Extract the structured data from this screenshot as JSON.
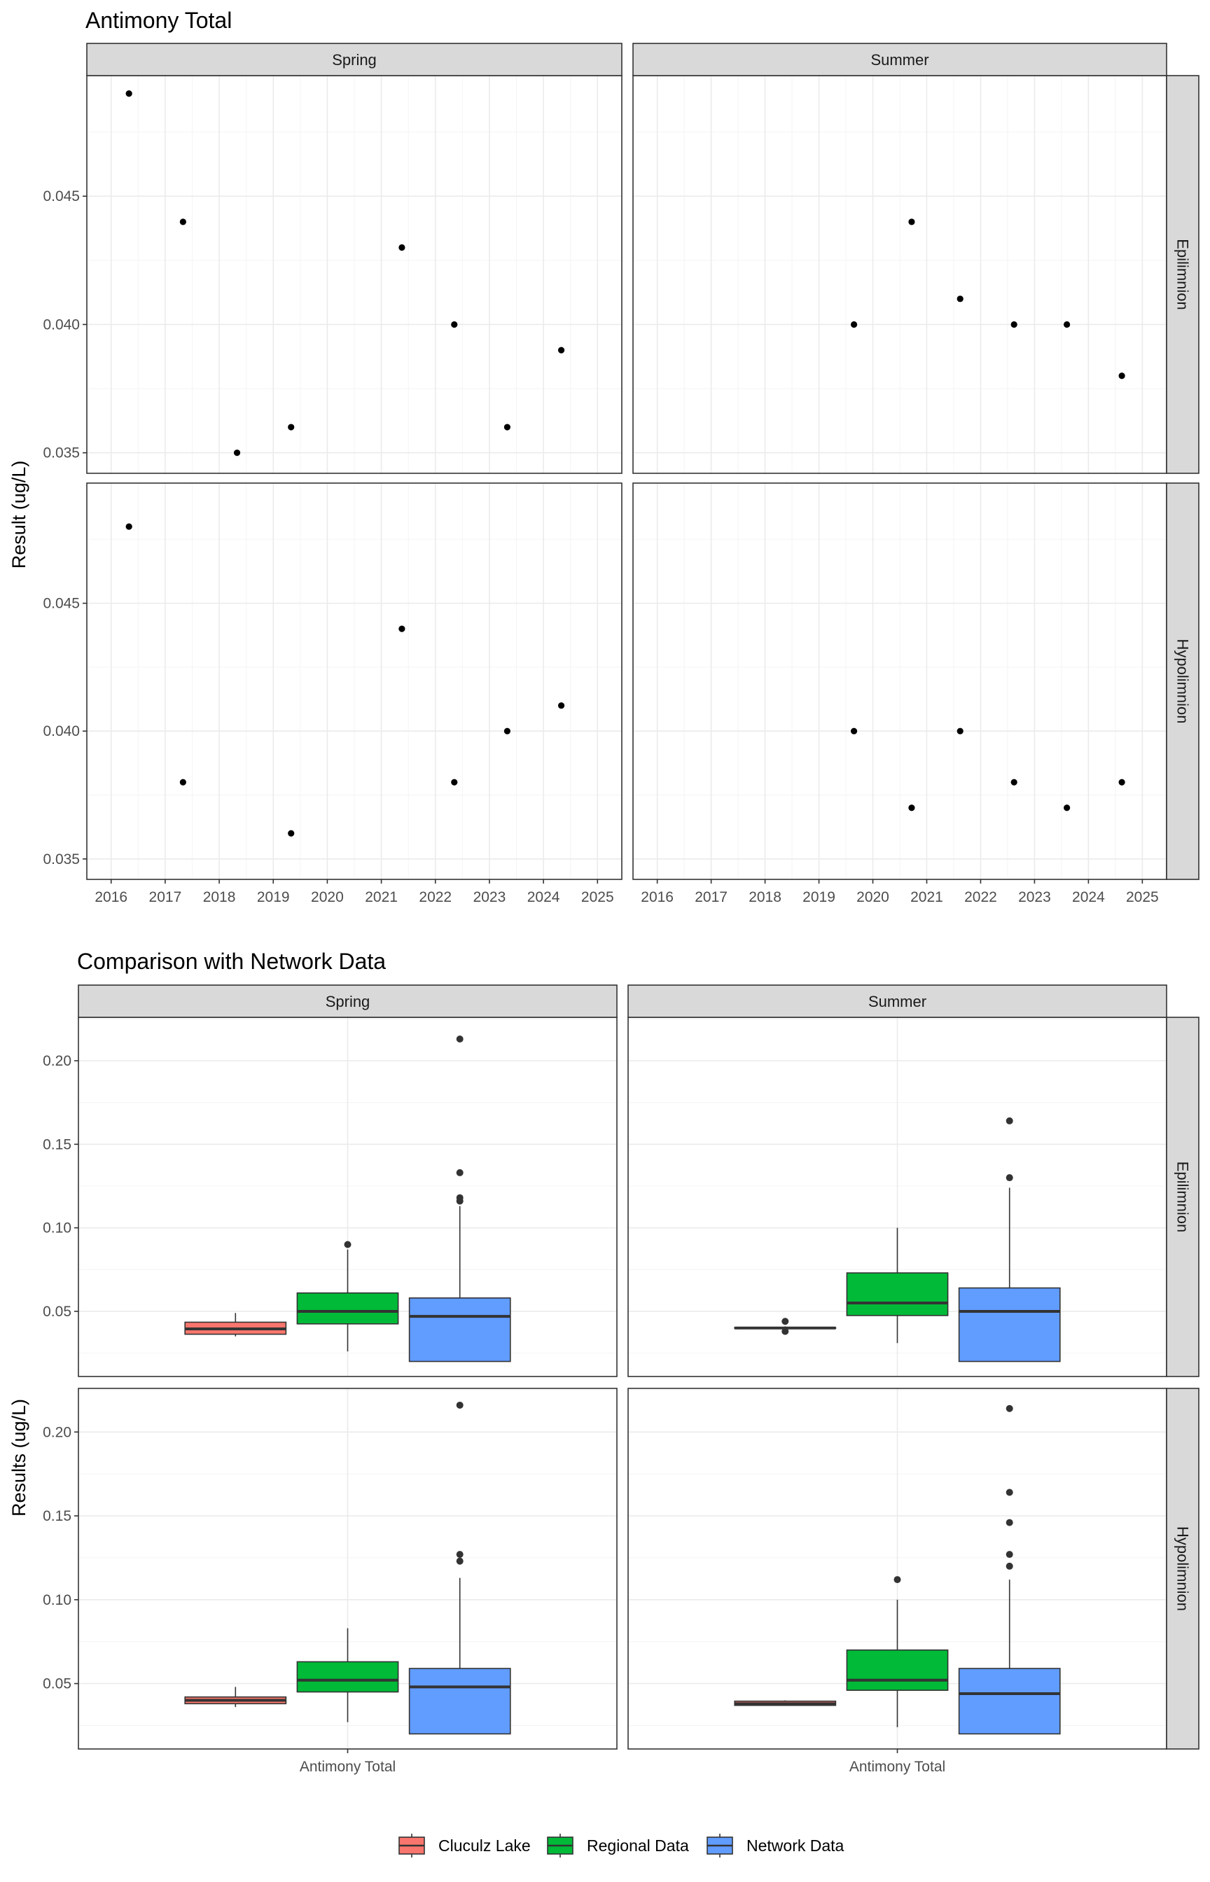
{
  "chart_data": [
    {
      "type": "scatter",
      "title": "Antimony Total",
      "xlabel": "",
      "ylabel": "Result (ug/L)",
      "columns": [
        "Spring",
        "Summer"
      ],
      "rows": [
        "Epilimnion",
        "Hypolimnion"
      ],
      "x_ticks": [
        "2016",
        "2017",
        "2018",
        "2019",
        "2020",
        "2021",
        "2022",
        "2023",
        "2024",
        "2025"
      ],
      "xlim": [
        2015.55,
        2025.45
      ],
      "y_ticks": [
        "0.035",
        "0.040",
        "0.045"
      ],
      "ylim": [
        0.0342,
        0.0497
      ],
      "grid": true,
      "panels": [
        {
          "column": "Spring",
          "row": "Epilimnion",
          "x": [
            2016.33,
            2017.33,
            2018.33,
            2019.33,
            2021.38,
            2022.35,
            2023.33,
            2024.33
          ],
          "y": [
            0.049,
            0.044,
            0.035,
            0.036,
            0.043,
            0.04,
            0.036,
            0.039
          ]
        },
        {
          "column": "Summer",
          "row": "Epilimnion",
          "x": [
            2019.65,
            2020.72,
            2021.62,
            2022.62,
            2023.6,
            2024.62
          ],
          "y": [
            0.04,
            0.044,
            0.041,
            0.04,
            0.04,
            0.038
          ]
        },
        {
          "column": "Spring",
          "row": "Hypolimnion",
          "x": [
            2016.33,
            2017.33,
            2019.33,
            2021.38,
            2022.35,
            2023.33,
            2024.33
          ],
          "y": [
            0.048,
            0.038,
            0.036,
            0.044,
            0.038,
            0.04,
            0.041
          ]
        },
        {
          "column": "Summer",
          "row": "Hypolimnion",
          "x": [
            2019.65,
            2020.72,
            2021.62,
            2022.62,
            2023.6,
            2024.62
          ],
          "y": [
            0.04,
            0.037,
            0.04,
            0.038,
            0.037,
            0.038
          ]
        }
      ]
    },
    {
      "type": "box",
      "title": "Comparison with Network Data",
      "xlabel": "",
      "ylabel": "Results (ug/L)",
      "columns": [
        "Spring",
        "Summer"
      ],
      "rows": [
        "Epilimnion",
        "Hypolimnion"
      ],
      "category": "Antimony Total",
      "y_ticks": [
        "0.05",
        "0.10",
        "0.15",
        "0.20"
      ],
      "ylim": [
        0.011,
        0.226
      ],
      "grid": true,
      "legend": {
        "position": "bottom",
        "entries": [
          {
            "name": "Cluculz Lake",
            "color": "#F8766D"
          },
          {
            "name": "Regional Data",
            "color": "#00BA38"
          },
          {
            "name": "Network Data",
            "color": "#619CFF"
          }
        ]
      },
      "panels": [
        {
          "column": "Spring",
          "row": "Epilimnion",
          "series": [
            {
              "name": "Cluculz Lake",
              "min": 0.035,
              "q1": 0.0363,
              "median": 0.0395,
              "q3": 0.0435,
              "max": 0.049,
              "outliers": []
            },
            {
              "name": "Regional Data",
              "min": 0.026,
              "q1": 0.0425,
              "median": 0.05,
              "q3": 0.061,
              "max": 0.087,
              "outliers": [
                0.09
              ]
            },
            {
              "name": "Network Data",
              "min": 0.02,
              "q1": 0.02,
              "median": 0.047,
              "q3": 0.058,
              "max": 0.113,
              "outliers": [
                0.116,
                0.118,
                0.133,
                0.213
              ]
            }
          ]
        },
        {
          "column": "Summer",
          "row": "Epilimnion",
          "series": [
            {
              "name": "Cluculz Lake",
              "min": 0.039,
              "q1": 0.0398,
              "median": 0.04,
              "q3": 0.0403,
              "max": 0.041,
              "outliers": [
                0.038,
                0.044
              ]
            },
            {
              "name": "Regional Data",
              "min": 0.031,
              "q1": 0.0475,
              "median": 0.055,
              "q3": 0.073,
              "max": 0.1,
              "outliers": []
            },
            {
              "name": "Network Data",
              "min": 0.02,
              "q1": 0.02,
              "median": 0.05,
              "q3": 0.064,
              "max": 0.124,
              "outliers": [
                0.13,
                0.164
              ]
            }
          ]
        },
        {
          "column": "Spring",
          "row": "Hypolimnion",
          "series": [
            {
              "name": "Cluculz Lake",
              "min": 0.036,
              "q1": 0.038,
              "median": 0.04,
              "q3": 0.042,
              "max": 0.048,
              "outliers": []
            },
            {
              "name": "Regional Data",
              "min": 0.027,
              "q1": 0.045,
              "median": 0.052,
              "q3": 0.063,
              "max": 0.083,
              "outliers": []
            },
            {
              "name": "Network Data",
              "min": 0.02,
              "q1": 0.02,
              "median": 0.048,
              "q3": 0.059,
              "max": 0.113,
              "outliers": [
                0.123,
                0.127,
                0.216
              ]
            }
          ]
        },
        {
          "column": "Summer",
          "row": "Hypolimnion",
          "series": [
            {
              "name": "Cluculz Lake",
              "min": 0.037,
              "q1": 0.037,
              "median": 0.038,
              "q3": 0.0395,
              "max": 0.04,
              "outliers": []
            },
            {
              "name": "Regional Data",
              "min": 0.024,
              "q1": 0.046,
              "median": 0.052,
              "q3": 0.07,
              "max": 0.1,
              "outliers": [
                0.112
              ]
            },
            {
              "name": "Network Data",
              "min": 0.02,
              "q1": 0.02,
              "median": 0.044,
              "q3": 0.059,
              "max": 0.112,
              "outliers": [
                0.12,
                0.127,
                0.146,
                0.164,
                0.214
              ]
            }
          ]
        }
      ]
    }
  ]
}
